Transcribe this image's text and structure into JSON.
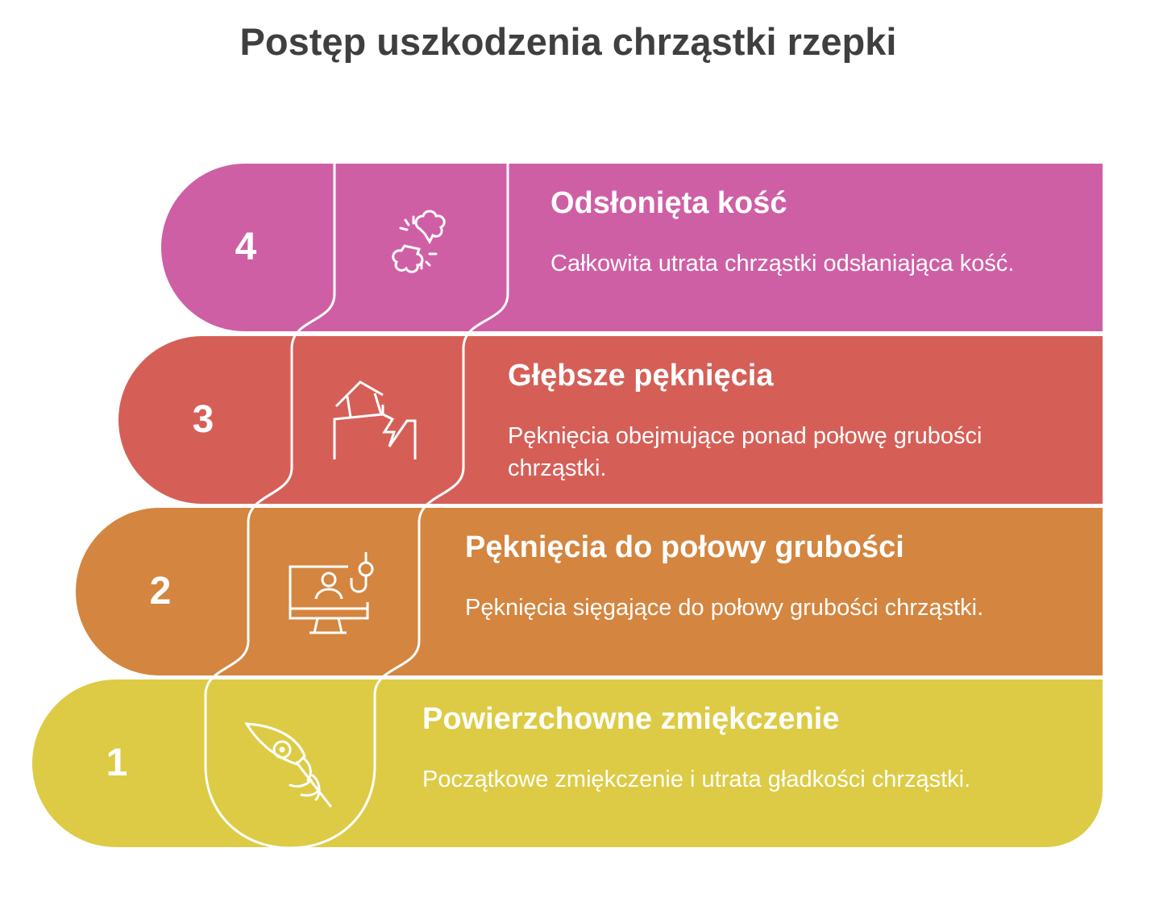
{
  "title": "Postęp uszkodzenia chrząstki rzepki",
  "steps": [
    {
      "number": "4",
      "heading": "Odsłonięta kość",
      "description": "Całkowita utrata chrząstki odsłaniająca kość.",
      "color": "#CF5FA5",
      "icon": "broken-bone-icon"
    },
    {
      "number": "3",
      "heading": "Głębsze pęknięcia",
      "description": "Pęknięcia obejmujące ponad połowę grubości chrząstki.",
      "color": "#D55F57",
      "icon": "cracked-house-icon"
    },
    {
      "number": "2",
      "heading": "Pęknięcia do połowy grubości",
      "description": "Pęknięcia sięgające do połowy grubości chrząstki.",
      "color": "#D4853F",
      "icon": "monitor-hook-icon"
    },
    {
      "number": "1",
      "heading": "Powierzchowne zmiękczenie",
      "description": "Początkowe zmiękczenie i utrata gładkości chrząstki.",
      "color": "#DDCB45",
      "icon": "feather-icon"
    }
  ]
}
